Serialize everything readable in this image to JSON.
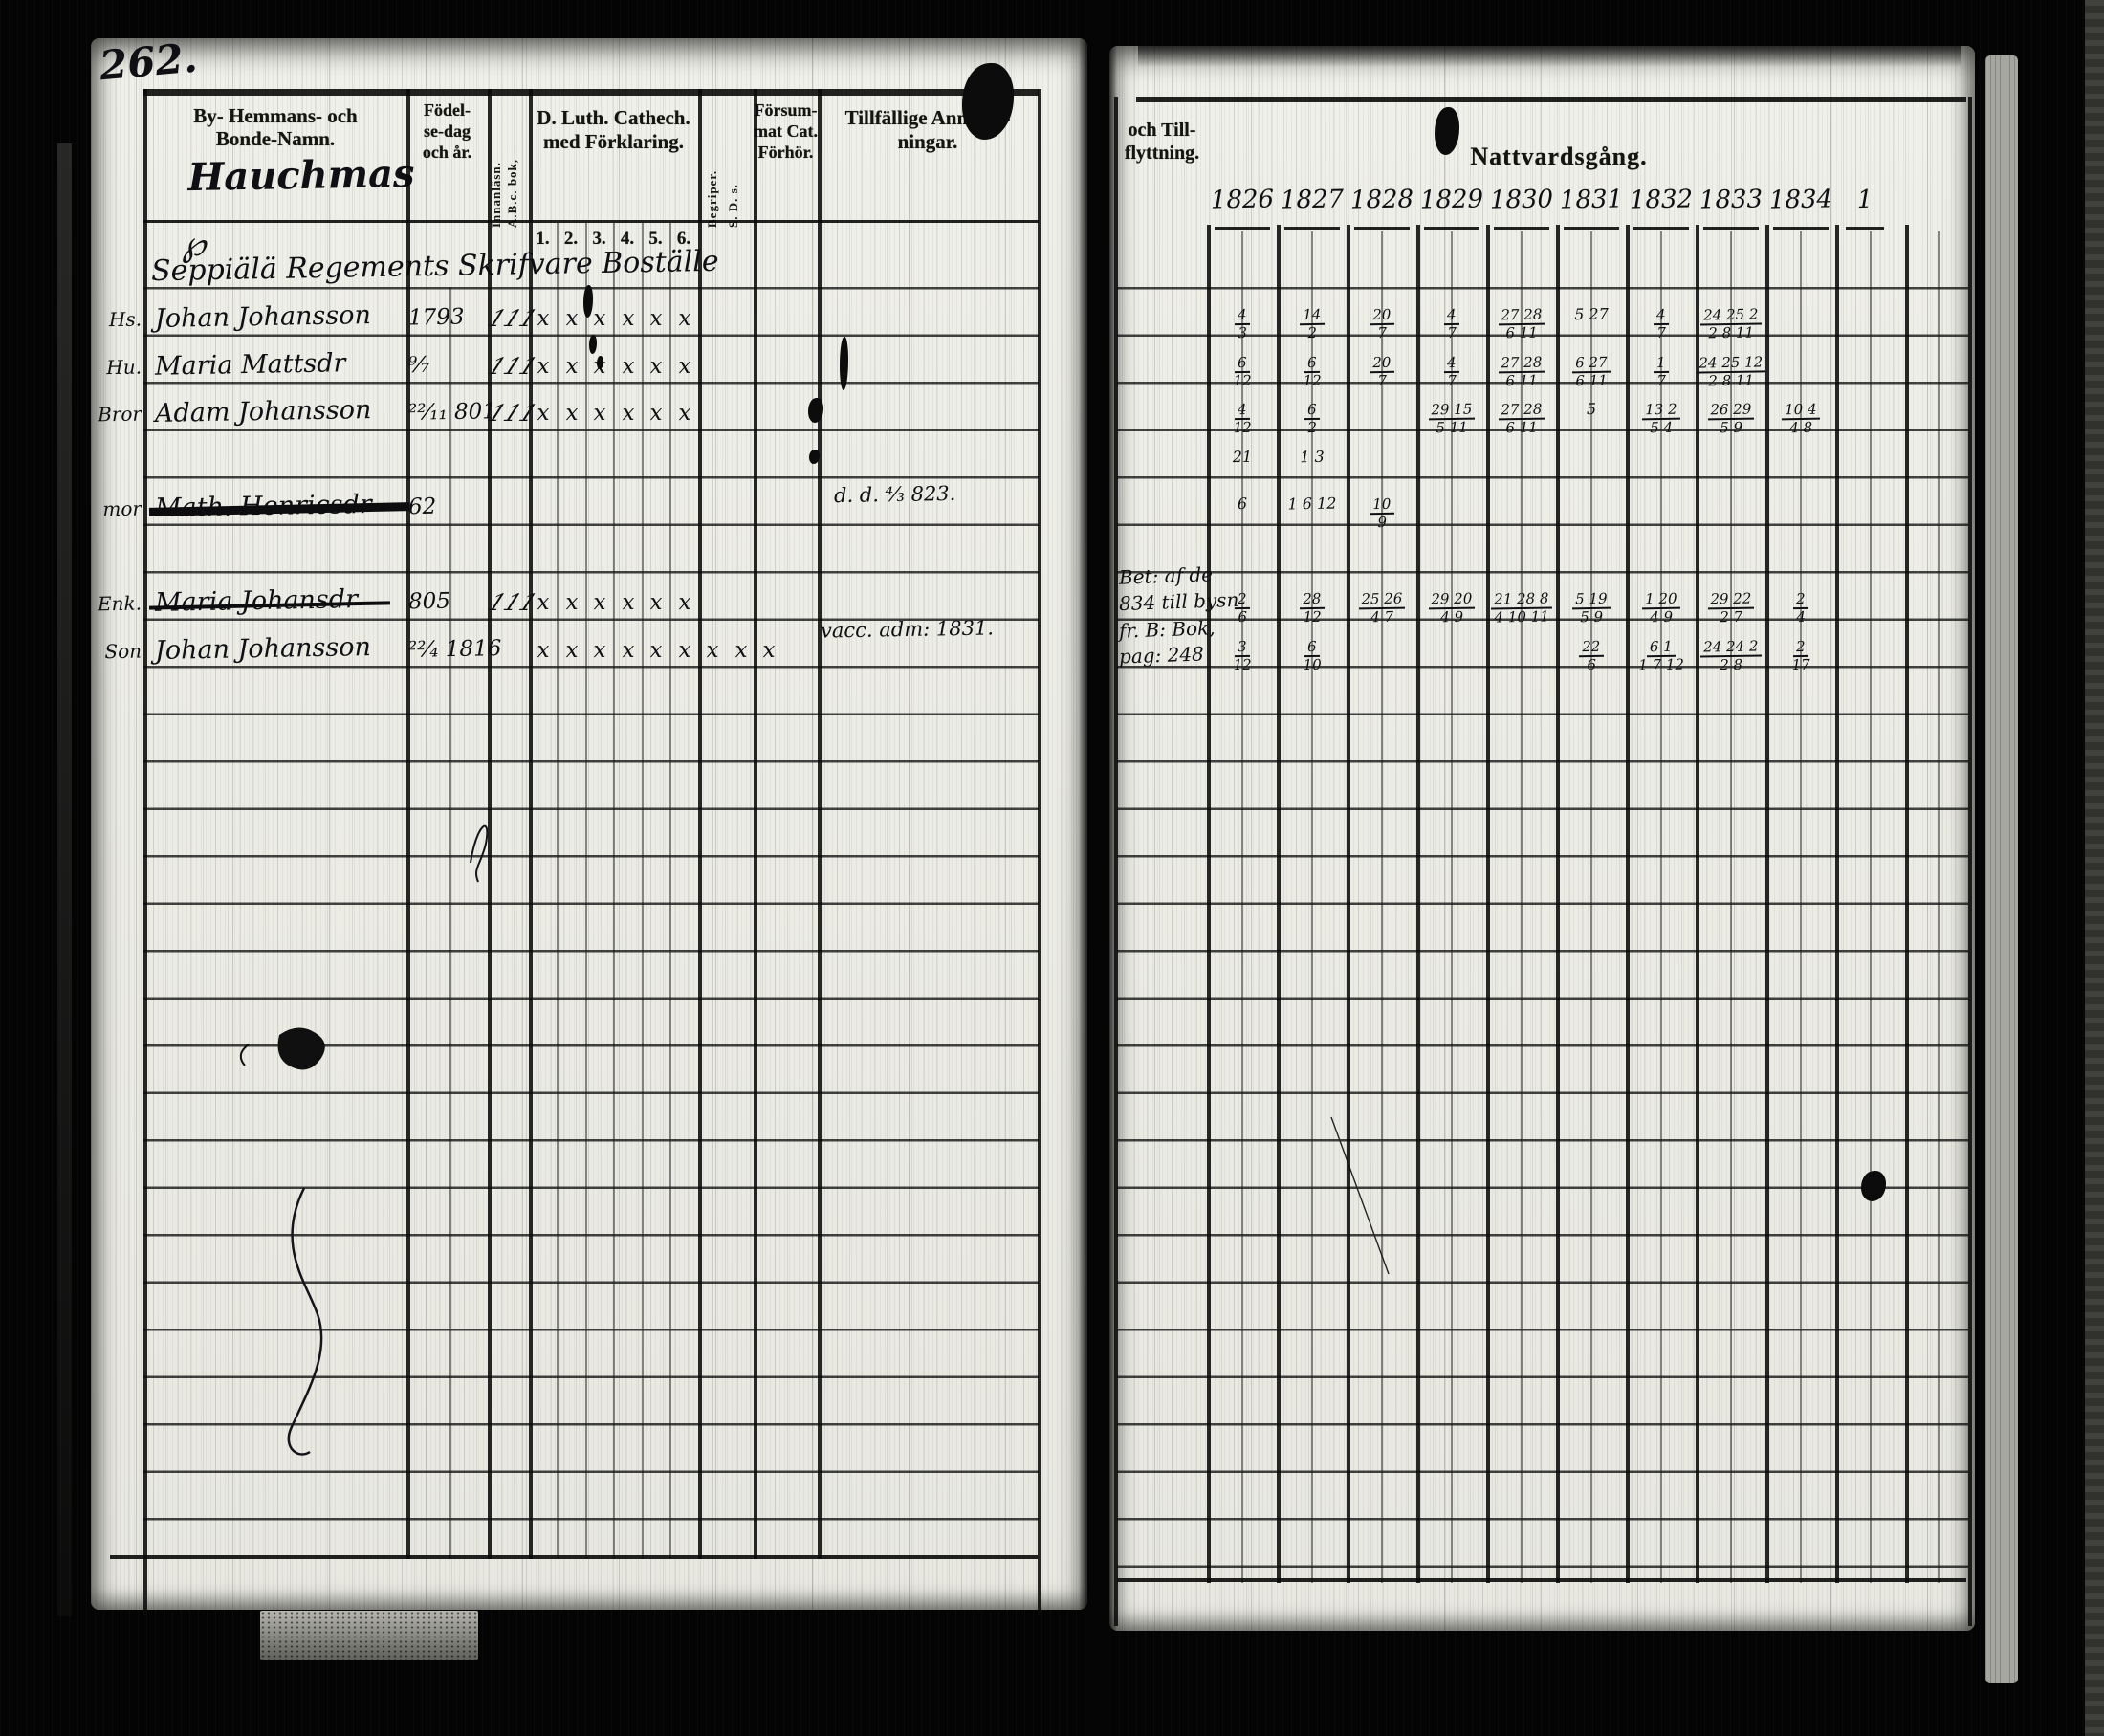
{
  "film": {
    "page_number": "262."
  },
  "left_page": {
    "header": {
      "col_name": [
        "By- Hemmans- och",
        "Bonde-Namn."
      ],
      "col_birth": [
        "Födel-",
        "se-dag",
        "och år."
      ],
      "col_abc": [
        "A.B.c. bok,",
        "Innanläsn."
      ],
      "col_cat": [
        "D. Luth. Cathech.",
        "med Förklaring."
      ],
      "cat_numbers": [
        "1.",
        "2.",
        "3.",
        "4.",
        "5.",
        "6."
      ],
      "col_sds": [
        "Begriper.",
        "S. D. s."
      ],
      "col_missed": [
        "Försum-",
        "mat Cat.",
        "Förhör."
      ],
      "col_remarks": [
        "Tillfällige Anmärk-",
        "ningar."
      ]
    },
    "village": "Hauchmas",
    "flourish": "℘",
    "section_heading": "Seppiälä Regements Skrifvare Boställe",
    "rows": [
      {
        "margin": "Hs.",
        "name": "Johan Johansson",
        "birth": "1793",
        "abc": "111",
        "marks": [
          "x",
          "x",
          "x",
          "x",
          "x",
          "x"
        ],
        "struck": false
      },
      {
        "margin": "Hu.",
        "name": "Maria Mattsdr",
        "birth": "⁹⁄₇",
        "abc": "111",
        "marks": [
          "x",
          "x",
          "x",
          "x",
          "x",
          "x"
        ],
        "struck": false
      },
      {
        "margin": "Bror",
        "name": "Adam Johansson",
        "birth": "²²⁄₁₁ 801",
        "abc": "111",
        "marks": [
          "x",
          "x",
          "x",
          "x",
          "x",
          "x"
        ],
        "struck": false
      },
      {
        "margin": "mor",
        "name": "Math. Henricsdr",
        "birth": "62",
        "abc": "",
        "marks": [],
        "struck": true
      },
      {
        "margin": "Enk.",
        "name": "Maria Johansdr",
        "birth": "805",
        "abc": "111",
        "marks": [
          "x",
          "x",
          "x",
          "x",
          "x",
          "x"
        ],
        "struck": true
      },
      {
        "margin": "Son",
        "name": "Johan Johansson",
        "birth": "²²⁄₄ 1816",
        "abc": "",
        "marks": [
          "x",
          "x",
          "x",
          "x",
          "x",
          "x",
          "x",
          "x",
          "x"
        ],
        "struck": false
      }
    ],
    "remarks": [
      "d. d. ⁴⁄₃ 823.",
      "vacc. adm: 1831."
    ]
  },
  "right_page": {
    "moving_header": [
      "och Till-",
      "flyttning."
    ],
    "communion_header": "Nattvardsgång.",
    "years": [
      "1826",
      "1827",
      "1828",
      "1829",
      "1830",
      "1831",
      "1832",
      "1833",
      "1834",
      "1"
    ],
    "mark_rows": [
      {
        "cells": [
          "4/3",
          "14/2",
          "20/7",
          "4/7",
          "27 28/6 11",
          "5 27",
          "4/7",
          "24 25 2/2 8 11",
          ""
        ]
      },
      {
        "cells": [
          "6/12",
          "6/12",
          "20/7",
          "4/7",
          "27 28/6 11",
          "6 27/6 11",
          "1/7",
          "24 25 12/2 8 11",
          ""
        ]
      },
      {
        "cells": [
          "4/12",
          "6/2",
          "",
          "29 15/5 11",
          "27 28/6 11",
          "5",
          "13 2/5 4",
          "26 29/5 9",
          "10 4/4 8"
        ]
      },
      {
        "cells": [
          "21",
          "1 3",
          "",
          "",
          "",
          "",
          "",
          "",
          ""
        ]
      },
      {
        "cells": [
          "6",
          "1 6 12",
          "10/9",
          "",
          "",
          "",
          "",
          "",
          ""
        ]
      }
    ],
    "moving_notes": [
      {
        "lines": [
          "Bet: af de",
          "834 till bysn"
        ]
      },
      {
        "lines": [
          "fr. B: Bok,",
          "pag: 248"
        ]
      }
    ],
    "lower_mark_rows": [
      {
        "cells": [
          "2/6",
          "28/12",
          "25 26/4 7",
          "29 20/4 9",
          "21 28 8/4 10 11",
          "5 19/5 9",
          "1 20/4 9",
          "29 22/2 7",
          "2/4"
        ]
      },
      {
        "cells": [
          "3/12",
          "6/10",
          "",
          "",
          "",
          "22/6",
          "6 1/1 7 12",
          "24 24 2/2 8",
          "2/17"
        ]
      }
    ]
  }
}
